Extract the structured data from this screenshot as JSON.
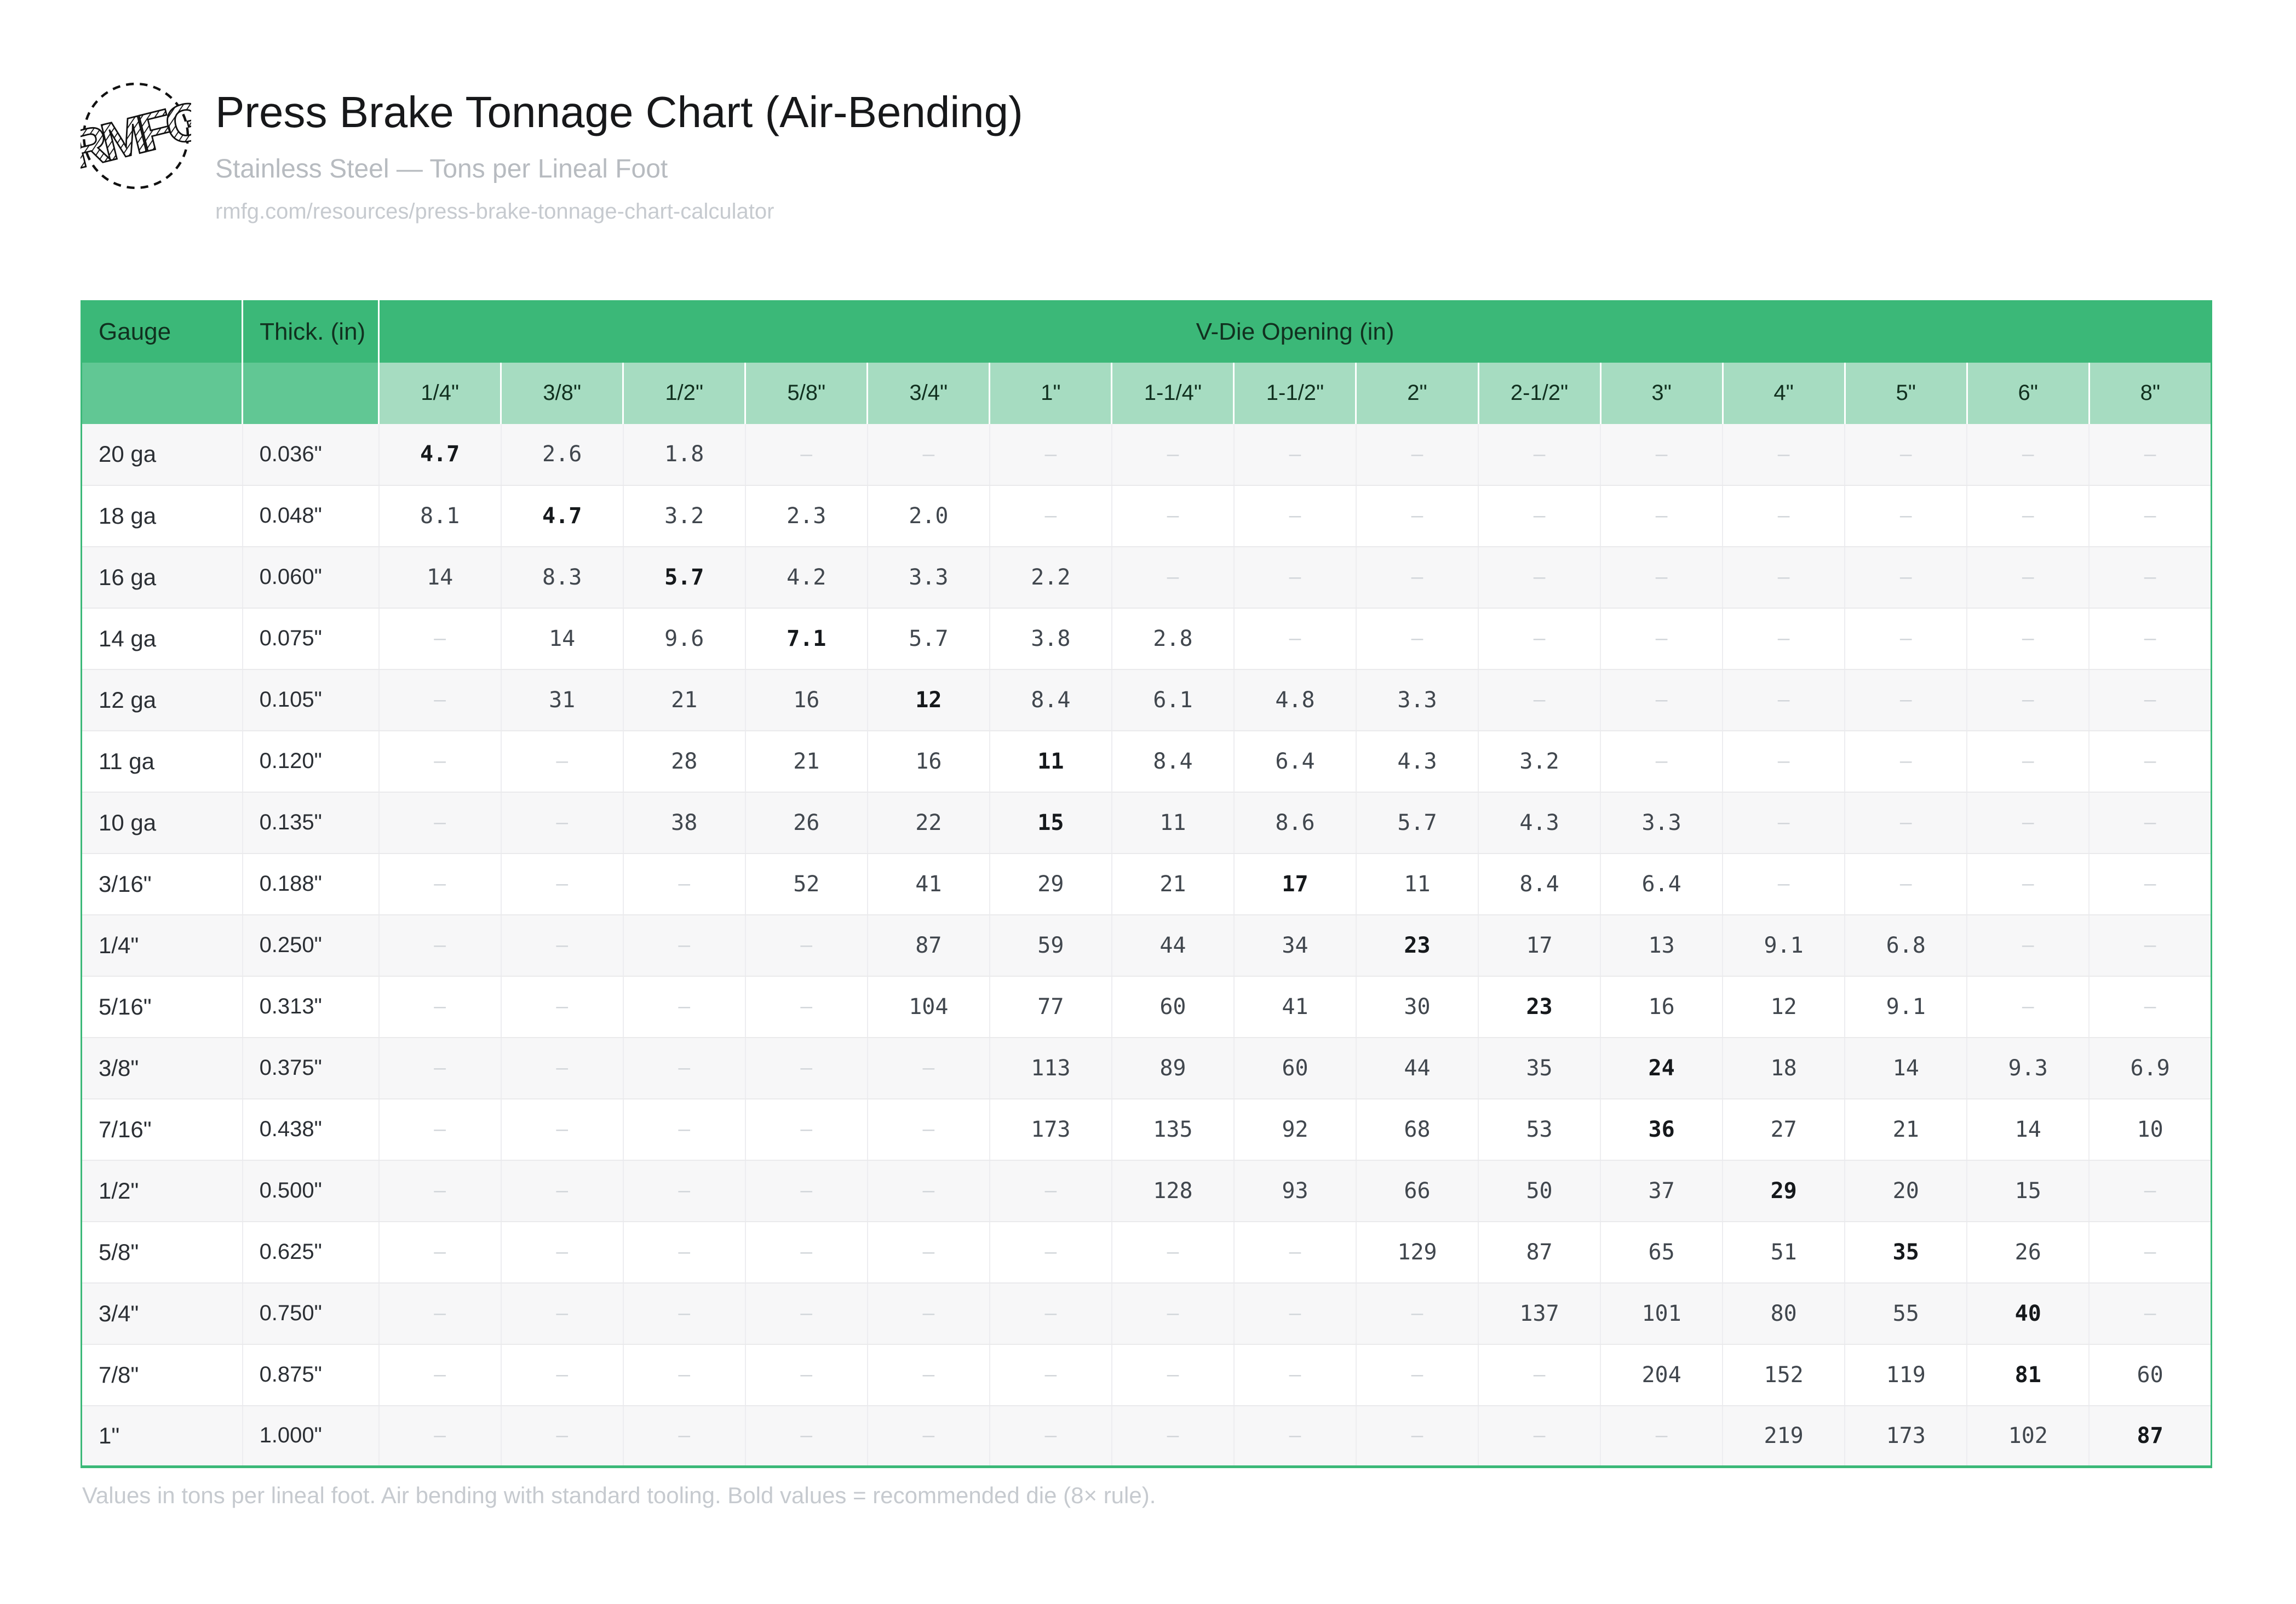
{
  "header": {
    "logo_text": "RMFG",
    "title": "Press Brake Tonnage Chart (Air-Bending)",
    "subtitle": "Stainless Steel — Tons per Lineal Foot",
    "url": "rmfg.com/resources/press-brake-tonnage-chart-calculator"
  },
  "table": {
    "corner_headers": [
      "Gauge",
      "Thick. (in)"
    ],
    "group_header": "V-Die Opening (in)",
    "die_openings": [
      "1/4\"",
      "3/8\"",
      "1/2\"",
      "5/8\"",
      "3/4\"",
      "1\"",
      "1-1/4\"",
      "1-1/2\"",
      "2\"",
      "2-1/2\"",
      "3\"",
      "4\"",
      "5\"",
      "6\"",
      "8\""
    ],
    "dash_char": "–",
    "rows": [
      {
        "gauge": "20 ga",
        "thickness": "0.036\"",
        "bold_index": 0,
        "values": [
          "4.7",
          "2.6",
          "1.8",
          "–",
          "–",
          "–",
          "–",
          "–",
          "–",
          "–",
          "–",
          "–",
          "–",
          "–",
          "–"
        ]
      },
      {
        "gauge": "18 ga",
        "thickness": "0.048\"",
        "bold_index": 1,
        "values": [
          "8.1",
          "4.7",
          "3.2",
          "2.3",
          "2.0",
          "–",
          "–",
          "–",
          "–",
          "–",
          "–",
          "–",
          "–",
          "–",
          "–"
        ]
      },
      {
        "gauge": "16 ga",
        "thickness": "0.060\"",
        "bold_index": 2,
        "values": [
          "14",
          "8.3",
          "5.7",
          "4.2",
          "3.3",
          "2.2",
          "–",
          "–",
          "–",
          "–",
          "–",
          "–",
          "–",
          "–",
          "–"
        ]
      },
      {
        "gauge": "14 ga",
        "thickness": "0.075\"",
        "bold_index": 3,
        "values": [
          "–",
          "14",
          "9.6",
          "7.1",
          "5.7",
          "3.8",
          "2.8",
          "–",
          "–",
          "–",
          "–",
          "–",
          "–",
          "–",
          "–"
        ]
      },
      {
        "gauge": "12 ga",
        "thickness": "0.105\"",
        "bold_index": 4,
        "values": [
          "–",
          "31",
          "21",
          "16",
          "12",
          "8.4",
          "6.1",
          "4.8",
          "3.3",
          "–",
          "–",
          "–",
          "–",
          "–",
          "–"
        ]
      },
      {
        "gauge": "11 ga",
        "thickness": "0.120\"",
        "bold_index": 5,
        "values": [
          "–",
          "–",
          "28",
          "21",
          "16",
          "11",
          "8.4",
          "6.4",
          "4.3",
          "3.2",
          "–",
          "–",
          "–",
          "–",
          "–"
        ]
      },
      {
        "gauge": "10 ga",
        "thickness": "0.135\"",
        "bold_index": 5,
        "values": [
          "–",
          "–",
          "38",
          "26",
          "22",
          "15",
          "11",
          "8.6",
          "5.7",
          "4.3",
          "3.3",
          "–",
          "–",
          "–",
          "–"
        ]
      },
      {
        "gauge": "3/16\"",
        "thickness": "0.188\"",
        "bold_index": 7,
        "values": [
          "–",
          "–",
          "–",
          "52",
          "41",
          "29",
          "21",
          "17",
          "11",
          "8.4",
          "6.4",
          "–",
          "–",
          "–",
          "–"
        ]
      },
      {
        "gauge": "1/4\"",
        "thickness": "0.250\"",
        "bold_index": 8,
        "values": [
          "–",
          "–",
          "–",
          "–",
          "87",
          "59",
          "44",
          "34",
          "23",
          "17",
          "13",
          "9.1",
          "6.8",
          "–",
          "–"
        ]
      },
      {
        "gauge": "5/16\"",
        "thickness": "0.313\"",
        "bold_index": 9,
        "values": [
          "–",
          "–",
          "–",
          "–",
          "104",
          "77",
          "60",
          "41",
          "30",
          "23",
          "16",
          "12",
          "9.1",
          "–",
          "–"
        ]
      },
      {
        "gauge": "3/8\"",
        "thickness": "0.375\"",
        "bold_index": 10,
        "values": [
          "–",
          "–",
          "–",
          "–",
          "–",
          "113",
          "89",
          "60",
          "44",
          "35",
          "24",
          "18",
          "14",
          "9.3",
          "6.9"
        ]
      },
      {
        "gauge": "7/16\"",
        "thickness": "0.438\"",
        "bold_index": 10,
        "values": [
          "–",
          "–",
          "–",
          "–",
          "–",
          "173",
          "135",
          "92",
          "68",
          "53",
          "36",
          "27",
          "21",
          "14",
          "10"
        ]
      },
      {
        "gauge": "1/2\"",
        "thickness": "0.500\"",
        "bold_index": 11,
        "values": [
          "–",
          "–",
          "–",
          "–",
          "–",
          "–",
          "128",
          "93",
          "66",
          "50",
          "37",
          "29",
          "20",
          "15",
          "–"
        ]
      },
      {
        "gauge": "5/8\"",
        "thickness": "0.625\"",
        "bold_index": 12,
        "values": [
          "–",
          "–",
          "–",
          "–",
          "–",
          "–",
          "–",
          "–",
          "129",
          "87",
          "65",
          "51",
          "35",
          "26",
          "–"
        ]
      },
      {
        "gauge": "3/4\"",
        "thickness": "0.750\"",
        "bold_index": 13,
        "values": [
          "–",
          "–",
          "–",
          "–",
          "–",
          "–",
          "–",
          "–",
          "–",
          "137",
          "101",
          "80",
          "55",
          "40",
          "–"
        ]
      },
      {
        "gauge": "7/8\"",
        "thickness": "0.875\"",
        "bold_index": 13,
        "values": [
          "–",
          "–",
          "–",
          "–",
          "–",
          "–",
          "–",
          "–",
          "–",
          "–",
          "204",
          "152",
          "119",
          "81",
          "60"
        ]
      },
      {
        "gauge": "1\"",
        "thickness": "1.000\"",
        "bold_index": 14,
        "values": [
          "–",
          "–",
          "–",
          "–",
          "–",
          "–",
          "–",
          "–",
          "–",
          "–",
          "–",
          "219",
          "173",
          "102",
          "87"
        ]
      }
    ]
  },
  "footer": {
    "note": "Values in tons per lineal foot. Air bending with standard tooling. Bold values = recommended die (8× rule)."
  },
  "colors": {
    "green_dark": "#3bb878",
    "green_mid": "#61c794",
    "green_light": "#a6dcc1",
    "stripe": "#f7f7f8",
    "num": "#41474e",
    "num_bold": "#16191c",
    "dash": "#d2d6da",
    "title": "#17181a",
    "subtitle": "#b7bbc0",
    "muted": "#c6cacf"
  }
}
